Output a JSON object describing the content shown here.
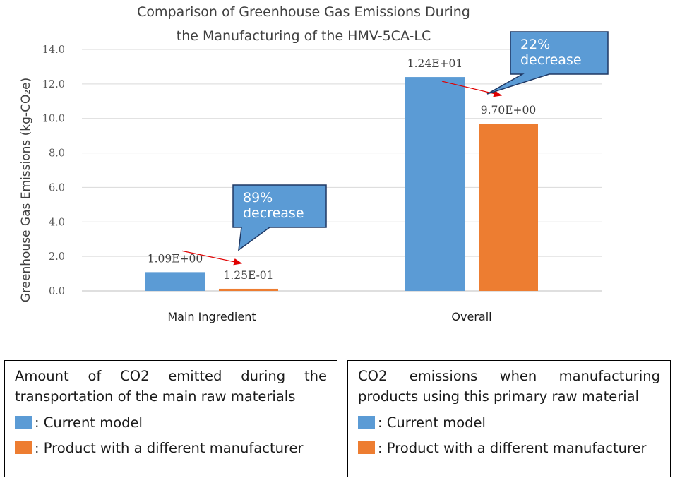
{
  "chart_data": {
    "type": "bar",
    "title_lines": [
      "Comparison of Greenhouse Gas Emissions During",
      "the Manufacturing of the HMV-5CA-LC"
    ],
    "ylabel": "Greenhouse Gas Emissions  (kg-CO₂e)",
    "ylim": [
      0,
      14
    ],
    "yticks": [
      "0.0",
      "2.0",
      "4.0",
      "6.0",
      "8.0",
      "10.0",
      "12.0",
      "14.0"
    ],
    "grid": true,
    "categories": [
      "Main Ingredient",
      "Overall"
    ],
    "series": [
      {
        "name": "Current model",
        "color": "#5b9bd5",
        "values": [
          1.09,
          12.4
        ],
        "labels": [
          "1.09E+00",
          "1.24E+01"
        ]
      },
      {
        "name": "Product with a different manufacturer",
        "color": "#ed7d31",
        "values": [
          0.125,
          9.7
        ],
        "labels": [
          "1.25E-01",
          "9.70E+00"
        ]
      }
    ],
    "annotations": [
      {
        "category": "Main Ingredient",
        "line1": "89%",
        "line2": "decrease"
      },
      {
        "category": "Overall",
        "line1": "22%",
        "line2": "decrease"
      }
    ]
  },
  "legends": [
    {
      "desc_words_first": [
        "Amount",
        "of",
        "CO2",
        "emitted",
        "during",
        "the"
      ],
      "desc_second": "transportation of the main raw materials",
      "items": [
        ": Current model",
        ": Product with a different manufacturer"
      ]
    },
    {
      "desc_words_first": [
        "CO2",
        "emissions",
        "when",
        "manufacturing"
      ],
      "desc_second": "products using this primary raw material",
      "items": [
        " : Current model",
        " : Product with a different manufacturer"
      ]
    }
  ]
}
